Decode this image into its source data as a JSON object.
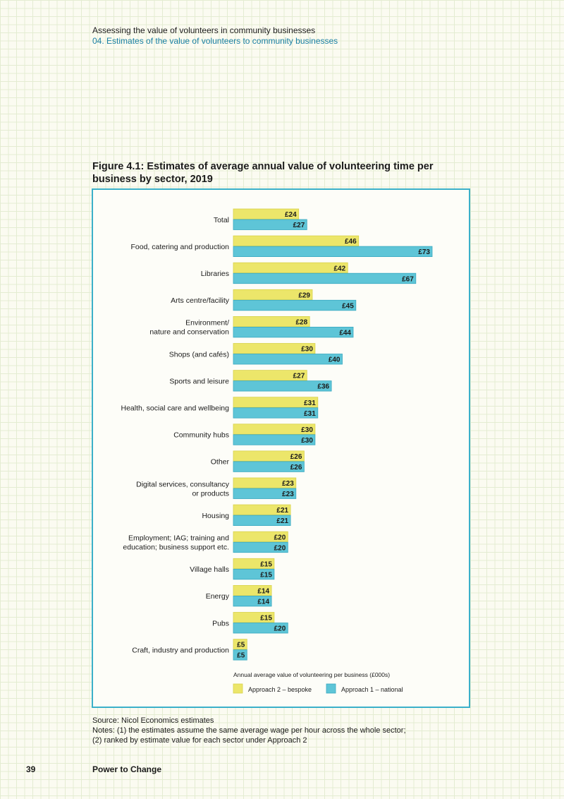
{
  "header": {
    "doc_title": "Assessing the value of volunteers in community businesses",
    "section": "04. Estimates of the value of volunteers to community businesses"
  },
  "figure": {
    "title": "Figure 4.1: Estimates of average annual value of volunteering time per business by sector, 2019"
  },
  "chart_data": {
    "type": "bar",
    "orientation": "horizontal",
    "categories": [
      "Total",
      "Food, catering and production",
      "Libraries",
      "Arts centre/facility",
      "Environment/\nnature and conservation",
      "Shops (and cafés)",
      "Sports and leisure",
      "Health, social care and wellbeing",
      "Community hubs",
      "Other",
      "Digital services, consultancy\nor products",
      "Housing",
      "Employment; IAG; training and\neducation; business support etc.",
      "Village halls",
      "Energy",
      "Pubs",
      "Craft, industry and production"
    ],
    "series": [
      {
        "name": "Approach 2 – bespoke",
        "color": "#ece66a",
        "values": [
          24,
          46,
          42,
          29,
          28,
          30,
          27,
          31,
          30,
          26,
          23,
          21,
          20,
          15,
          14,
          15,
          5
        ],
        "labels": [
          "£24",
          "£46",
          "£42",
          "£29",
          "£28",
          "£30",
          "£27",
          "£31",
          "£30",
          "£26",
          "£23",
          "£21",
          "£20",
          "£15",
          "£14",
          "£15",
          "£5"
        ]
      },
      {
        "name": "Approach 1 – national",
        "color": "#5ec5d7",
        "values": [
          27,
          73,
          67,
          45,
          44,
          40,
          36,
          31,
          30,
          26,
          23,
          21,
          20,
          15,
          14,
          20,
          5
        ],
        "labels": [
          "£27",
          "£73",
          "£67",
          "£45",
          "£44",
          "£40",
          "£36",
          "£31",
          "£30",
          "£26",
          "£23",
          "£21",
          "£20",
          "£15",
          "£14",
          "£20",
          "£5"
        ]
      }
    ],
    "xlabel": "Annual average value of volunteering per business (£000s)",
    "xlim": [
      0,
      73
    ],
    "grid": false,
    "legend_position": "bottom"
  },
  "notes": {
    "source": "Source: Nicol Economics estimates",
    "line1": "Notes: (1) the estimates assume the same average wage per hour across the whole sector;",
    "line2": "(2) ranked by estimate value for each sector under Approach 2"
  },
  "footer": {
    "page_number": "39",
    "brand": "Power to Change"
  }
}
